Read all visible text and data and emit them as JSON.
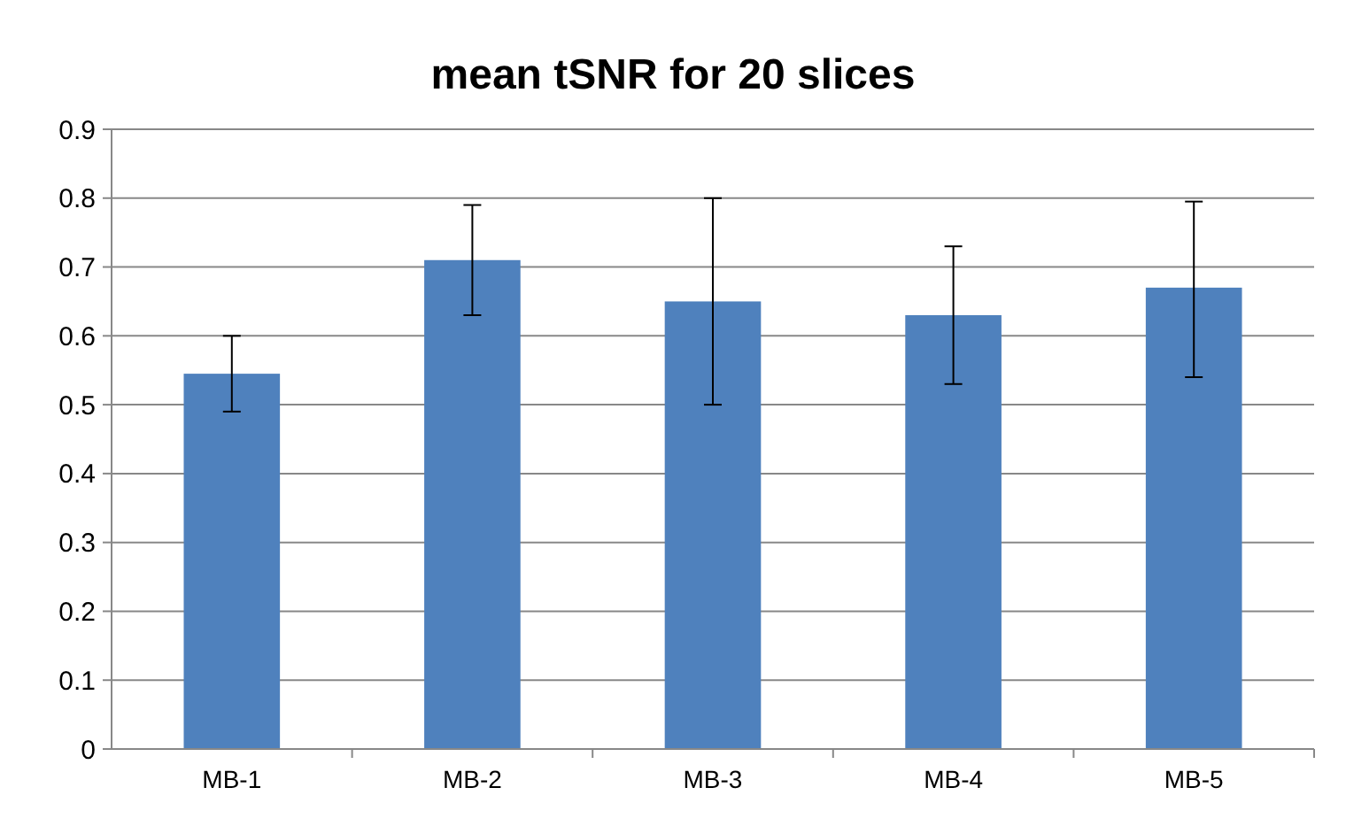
{
  "chart_data": {
    "type": "bar",
    "title": "mean tSNR for 20 slices",
    "categories": [
      "MB-1",
      "MB-2",
      "MB-3",
      "MB-4",
      "MB-5"
    ],
    "values": [
      0.545,
      0.71,
      0.65,
      0.63,
      0.67
    ],
    "errors": [
      [
        0.49,
        0.6
      ],
      [
        0.63,
        0.79
      ],
      [
        0.5,
        0.8
      ],
      [
        0.53,
        0.73
      ],
      [
        0.54,
        0.795
      ]
    ],
    "color": "#4f81bd",
    "ylim": [
      0,
      0.9
    ],
    "yticks": [
      0,
      0.1,
      0.2,
      0.3,
      0.4,
      0.5,
      0.6,
      0.7,
      0.8,
      0.9
    ],
    "grid": "y"
  }
}
